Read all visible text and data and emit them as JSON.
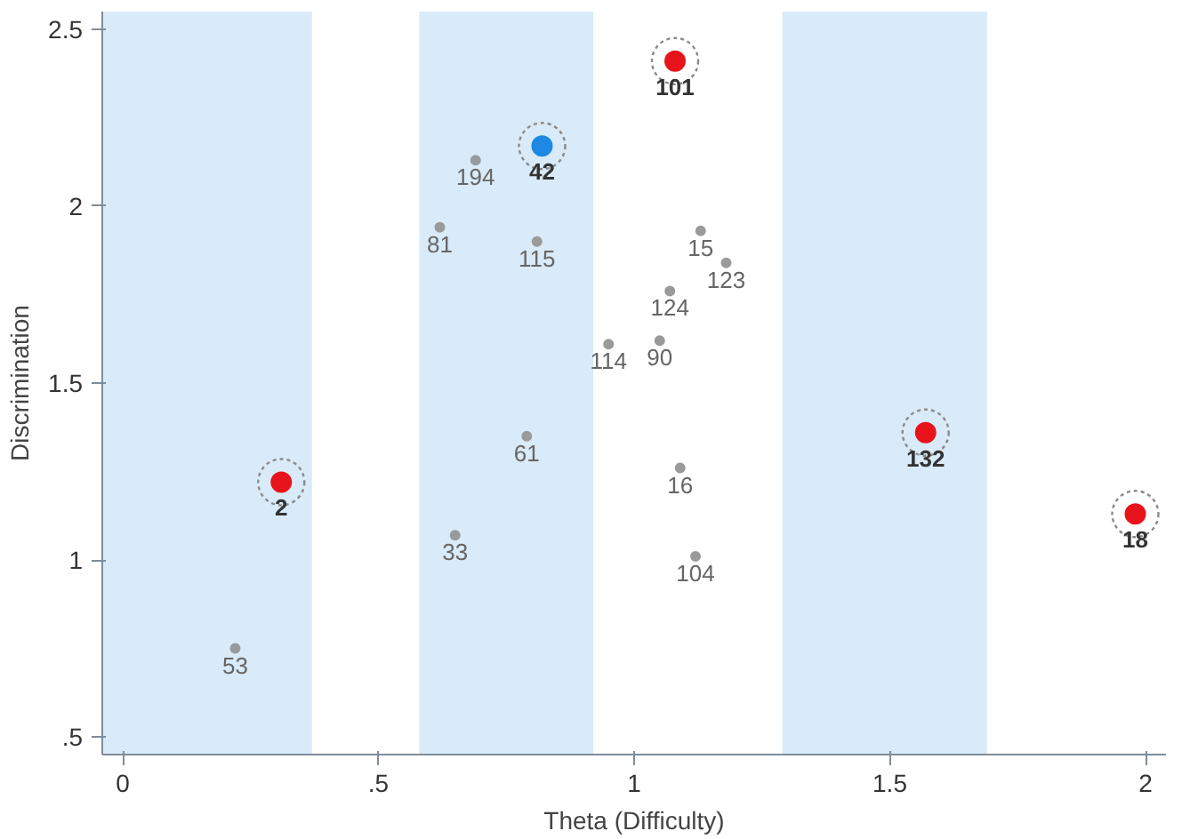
{
  "chart_data": {
    "type": "scatter",
    "xlabel": "Theta (Difficulty)",
    "ylabel": "Discrimination",
    "xlim": [
      -0.04,
      2.04
    ],
    "ylim": [
      0.45,
      2.55
    ],
    "xticks": [
      0,
      {
        "value": 0.5,
        "label": ".5"
      },
      1,
      1.5,
      2
    ],
    "yticks": [
      {
        "value": 0.5,
        "label": ".5"
      },
      1,
      1.5,
      2,
      2.5
    ],
    "grid": false,
    "marker": "circle",
    "bands": [
      {
        "axis": "x",
        "from": -0.04,
        "to": 0.37,
        "color": "#d9eaf8"
      },
      {
        "axis": "x",
        "from": 0.58,
        "to": 0.92,
        "color": "#d9eaf8"
      },
      {
        "axis": "x",
        "from": 1.29,
        "to": 1.69,
        "color": "#d9eaf8"
      }
    ],
    "series": [
      {
        "color": "#9a9a9a",
        "x": [
          0.22,
          0.65,
          0.79,
          0.69,
          0.62,
          0.81,
          1.13,
          1.18,
          1.07,
          1.05,
          0.95,
          1.09,
          1.12
        ],
        "values": [
          0.75,
          1.07,
          1.35,
          2.13,
          1.94,
          1.9,
          1.93,
          1.84,
          1.76,
          1.62,
          1.61,
          1.26,
          1.01
        ]
      },
      {
        "color": "#e8141b",
        "x": [
          0.31,
          1.08,
          1.57,
          1.98
        ],
        "values": [
          1.22,
          2.41,
          1.36,
          1.13
        ]
      },
      {
        "color": "#1e88e5",
        "x": [
          0.82
        ],
        "values": [
          2.17
        ]
      }
    ],
    "annotations": [
      {
        "text": "53",
        "x": 0.22,
        "y": 0.75
      },
      {
        "text": "33",
        "x": 0.65,
        "y": 1.07
      },
      {
        "text": "61",
        "x": 0.79,
        "y": 1.35
      },
      {
        "text": "194",
        "x": 0.69,
        "y": 2.13
      },
      {
        "text": "81",
        "x": 0.62,
        "y": 1.94
      },
      {
        "text": "115",
        "x": 0.81,
        "y": 1.9
      },
      {
        "text": "15",
        "x": 1.13,
        "y": 1.93
      },
      {
        "text": "123",
        "x": 1.18,
        "y": 1.84
      },
      {
        "text": "124",
        "x": 1.07,
        "y": 1.76
      },
      {
        "text": "90",
        "x": 1.05,
        "y": 1.62
      },
      {
        "text": "114",
        "x": 0.95,
        "y": 1.61
      },
      {
        "text": "16",
        "x": 1.09,
        "y": 1.26
      },
      {
        "text": "104",
        "x": 1.12,
        "y": 1.01
      },
      {
        "text": "2",
        "x": 0.31,
        "y": 1.22
      },
      {
        "text": "101",
        "x": 1.08,
        "y": 2.41
      },
      {
        "text": "132",
        "x": 1.57,
        "y": 1.36
      },
      {
        "text": "18",
        "x": 1.98,
        "y": 1.13
      },
      {
        "text": "42",
        "x": 0.82,
        "y": 2.17
      }
    ]
  }
}
